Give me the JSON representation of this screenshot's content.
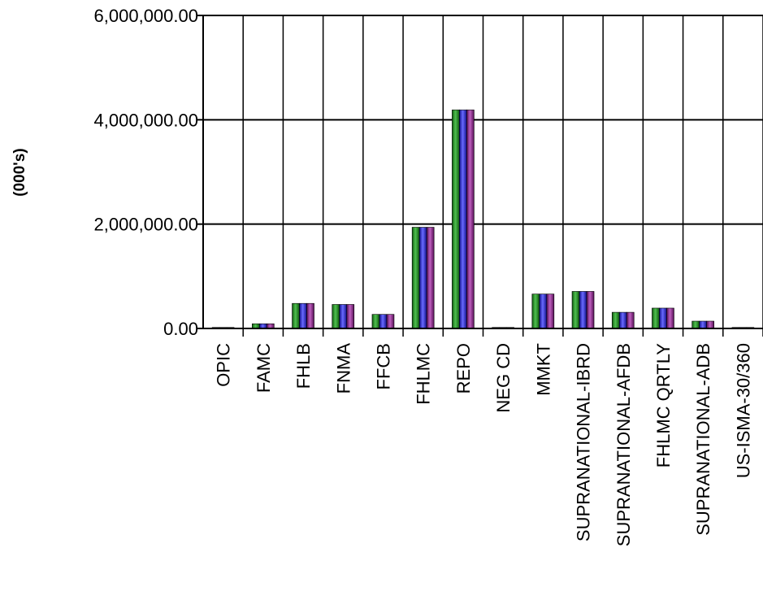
{
  "chart_data": {
    "type": "bar",
    "title": "",
    "xlabel": "",
    "ylabel": "(000's)",
    "ylim": [
      0,
      6000000
    ],
    "yticks": [
      0,
      2000000,
      4000000,
      6000000
    ],
    "ytick_labels": [
      "0.00",
      "2,000,000.00",
      "4,000,000.00",
      "6,000,000.00"
    ],
    "grid": true,
    "legend": "none",
    "categories": [
      "OPIC",
      "FAMC",
      "FHLB",
      "FNMA",
      "FFCB",
      "FHLMC",
      "REPO",
      "NEG CD",
      "MMKT",
      "SUPRANATIONAL-IBRD",
      "SUPRANATIONAL-AFDB",
      "FHLMC QRTLY",
      "SUPRANATIONAL-ADB",
      "US-ISMA-30/360"
    ],
    "series": [
      {
        "color": "#1f8a1f",
        "values": [
          20000,
          90000,
          480000,
          460000,
          270000,
          1940000,
          4190000,
          20000,
          660000,
          710000,
          310000,
          390000,
          140000,
          20000
        ]
      },
      {
        "color": "#2a2ae0",
        "values": [
          20000,
          90000,
          480000,
          460000,
          270000,
          1940000,
          4190000,
          20000,
          660000,
          710000,
          310000,
          390000,
          140000,
          20000
        ]
      },
      {
        "color": "#8a1a8a",
        "values": [
          20000,
          90000,
          480000,
          460000,
          270000,
          1940000,
          4190000,
          20000,
          660000,
          710000,
          310000,
          390000,
          140000,
          20000
        ]
      }
    ]
  }
}
